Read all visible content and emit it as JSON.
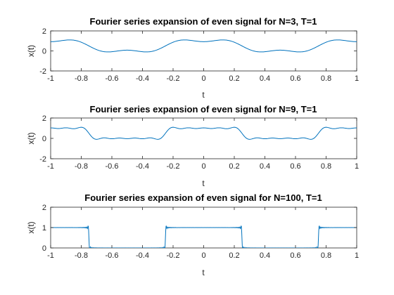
{
  "chart_data": [
    {
      "type": "line",
      "title": "Fourier series expansion of even signal for N=3, T=1",
      "xlabel": "t",
      "ylabel": "x(t)",
      "xlim": [
        -1,
        1
      ],
      "ylim": [
        -2,
        2
      ],
      "xticks": [
        "-1",
        "-0.8",
        "-0.6",
        "-0.4",
        "-0.2",
        "0",
        "0.2",
        "0.4",
        "0.6",
        "0.8",
        "1"
      ],
      "yticks": [
        "-2",
        "0",
        "2"
      ],
      "grid": false,
      "series": [
        {
          "signal": "square-wave",
          "harmonics": 3,
          "period": 1,
          "sample_step": 0.005,
          "color": "#0072BD"
        }
      ]
    },
    {
      "type": "line",
      "title": "Fourier series expansion of even signal for N=9, T=1",
      "xlabel": "t",
      "ylabel": "x(t)",
      "xlim": [
        -1,
        1
      ],
      "ylim": [
        -2,
        2
      ],
      "xticks": [
        "-1",
        "-0.8",
        "-0.6",
        "-0.4",
        "-0.2",
        "0",
        "0.2",
        "0.4",
        "0.6",
        "0.8",
        "1"
      ],
      "yticks": [
        "-2",
        "0",
        "2"
      ],
      "grid": false,
      "series": [
        {
          "signal": "square-wave",
          "harmonics": 9,
          "period": 1,
          "sample_step": 0.005,
          "color": "#0072BD"
        }
      ]
    },
    {
      "type": "line",
      "title": "Fourier series expansion of even signal for N=100, T=1",
      "xlabel": "t",
      "ylabel": "x(t)",
      "xlim": [
        -1,
        1
      ],
      "ylim": [
        0,
        2
      ],
      "xticks": [
        "-1",
        "-0.8",
        "-0.6",
        "-0.4",
        "-0.2",
        "0",
        "0.2",
        "0.4",
        "0.6",
        "0.8",
        "1"
      ],
      "yticks": [
        "0",
        "1",
        "2"
      ],
      "grid": false,
      "series": [
        {
          "signal": "square-wave",
          "harmonics": 100,
          "period": 1,
          "sample_step": 0.002,
          "color": "#0072BD"
        }
      ]
    }
  ]
}
